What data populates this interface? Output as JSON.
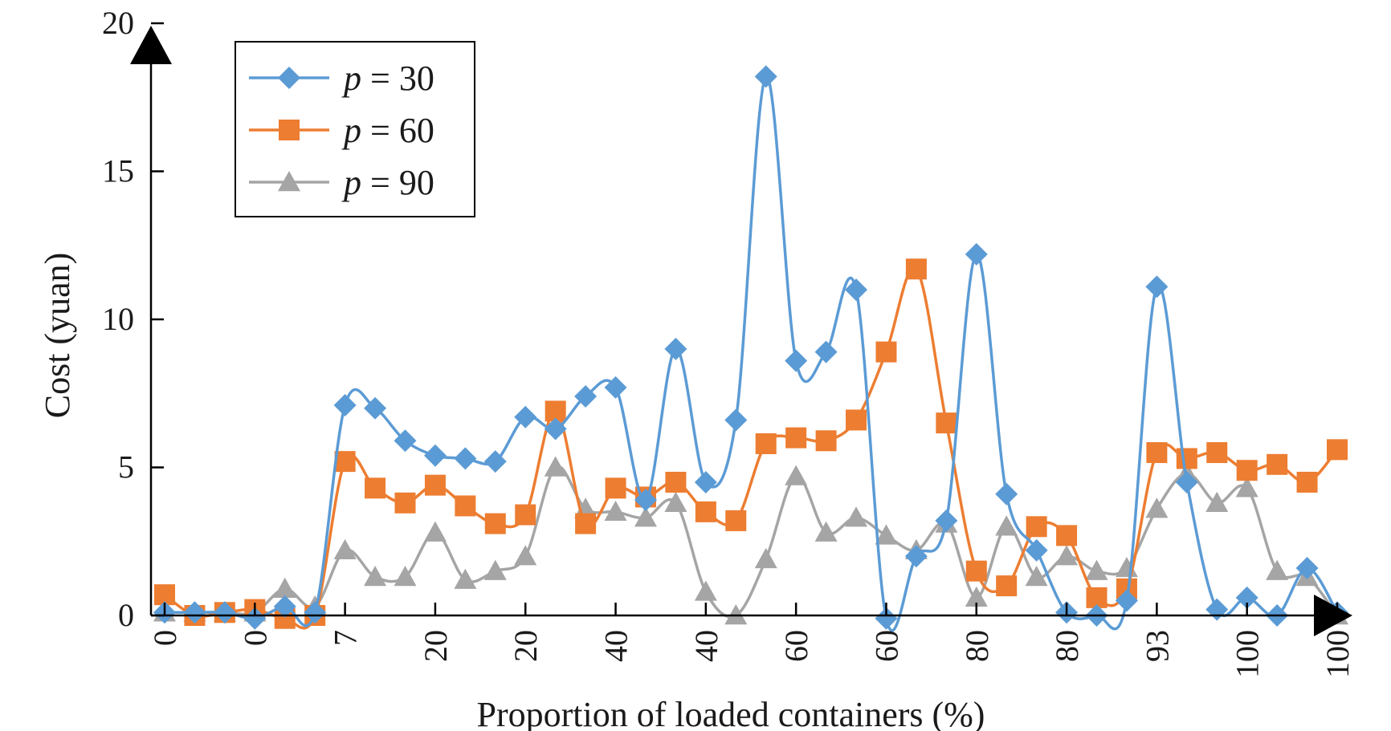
{
  "chart_data": {
    "type": "line",
    "title": "",
    "xlabel": "Proportion of loaded containers (%)",
    "ylabel": "Cost (yuan)",
    "ylim": [
      0,
      20
    ],
    "yticks": [
      "0",
      "5",
      "10",
      "15",
      "20"
    ],
    "ytick_values": [
      0,
      5,
      10,
      15,
      20
    ],
    "xtick_labels": [
      "0",
      "0",
      "7",
      "20",
      "20",
      "40",
      "40",
      "60",
      "60",
      "80",
      "80",
      "93",
      "100",
      "100"
    ],
    "grid": false,
    "legend_position": "top-left",
    "legend_prefix": "p",
    "legend_eq": " = ",
    "colors": {
      "p30": "#5b9bd5",
      "p60": "#ed7d31",
      "p90": "#a5a5a5",
      "axis": "#000000"
    },
    "series": [
      {
        "name": "30",
        "marker": "diamond",
        "values": [
          0.1,
          0.1,
          0.1,
          -0.1,
          0.3,
          0.1,
          7.1,
          7.0,
          5.9,
          5.4,
          5.3,
          5.2,
          6.7,
          6.3,
          7.4,
          7.7,
          3.9,
          9.0,
          4.5,
          6.6,
          18.2,
          8.6,
          8.9,
          11.0,
          -0.1,
          2.0,
          3.2,
          12.2,
          4.1,
          2.2,
          0.1,
          0.0,
          0.5,
          11.1,
          4.5,
          0.2,
          0.6,
          0.0,
          1.6,
          0.1
        ]
      },
      {
        "name": "60",
        "marker": "square",
        "values": [
          0.7,
          0.0,
          0.1,
          0.2,
          -0.1,
          0.0,
          5.2,
          4.3,
          3.8,
          4.4,
          3.7,
          3.1,
          3.4,
          6.9,
          3.1,
          4.3,
          4.0,
          4.5,
          3.5,
          3.2,
          5.8,
          6.0,
          5.9,
          6.6,
          8.9,
          11.7,
          6.5,
          1.5,
          1.0,
          3.0,
          2.7,
          0.6,
          0.9,
          5.5,
          5.3,
          5.5,
          4.9,
          5.1,
          4.5,
          5.6
        ]
      },
      {
        "name": "90",
        "marker": "triangle",
        "values": [
          0.1,
          0.1,
          0.1,
          0.1,
          0.9,
          0.3,
          2.2,
          1.3,
          1.3,
          2.8,
          1.2,
          1.5,
          2.0,
          5.0,
          3.6,
          3.5,
          3.3,
          3.8,
          0.8,
          0.0,
          1.9,
          4.7,
          2.8,
          3.3,
          2.7,
          2.2,
          3.1,
          0.6,
          3.0,
          1.3,
          2.0,
          1.5,
          1.6,
          3.6,
          4.8,
          3.8,
          4.3,
          1.5,
          1.3,
          0.0
        ]
      }
    ]
  }
}
